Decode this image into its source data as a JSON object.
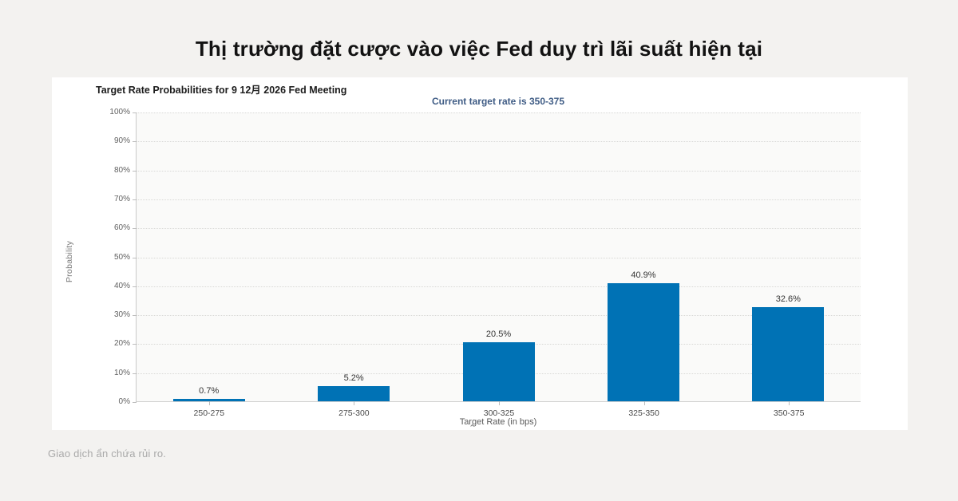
{
  "page": {
    "title": "Thị trường đặt cược vào việc Fed duy trì lãi suất hiện tại",
    "footer_note": "Giao dịch ẩn chứa rủi ro."
  },
  "chart_data": {
    "type": "bar",
    "title": "Target Rate Probabilities for 9 12月 2026 Fed Meeting",
    "subtitle": "Current target rate is 350-375",
    "xlabel": "Target Rate (in bps)",
    "ylabel": "Probability",
    "categories": [
      "250-275",
      "275-300",
      "300-325",
      "325-350",
      "350-375"
    ],
    "values": [
      0.7,
      5.2,
      20.5,
      40.9,
      32.6
    ],
    "value_labels": [
      "0.7%",
      "5.2%",
      "20.5%",
      "40.9%",
      "32.6%"
    ],
    "ylim": [
      0,
      100
    ],
    "yticks": [
      "100%",
      "90%",
      "80%",
      "70%",
      "60%",
      "50%",
      "40%",
      "30%",
      "20%",
      "10%",
      "0%"
    ],
    "grid": "horizontal dotted",
    "legend": "none",
    "bar_color": "#0072b5",
    "caret_glyph": "⌃"
  }
}
